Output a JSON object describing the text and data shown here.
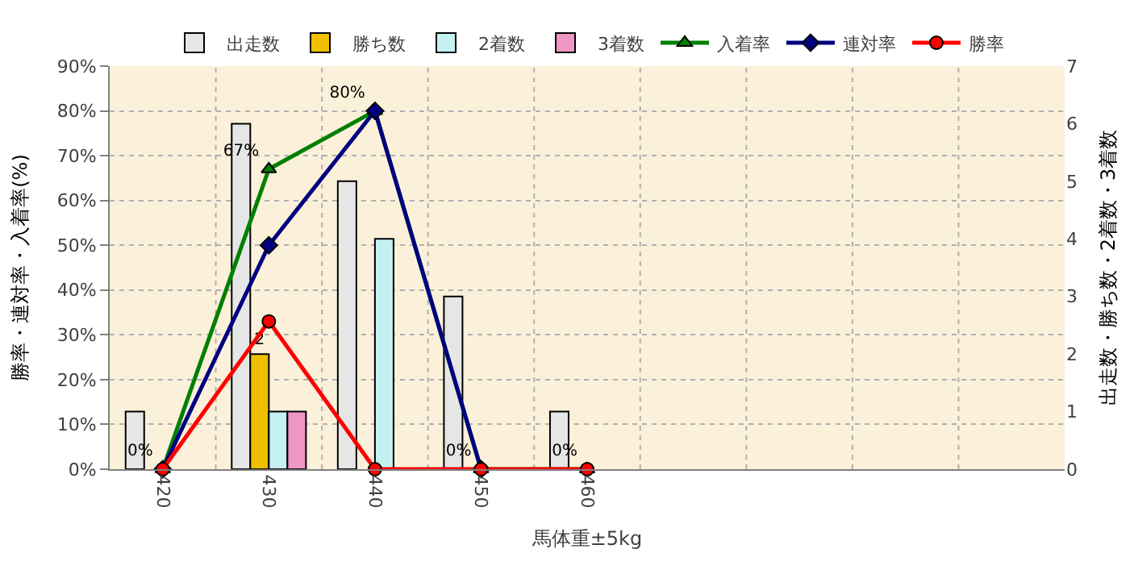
{
  "chart_data": {
    "type": "bar",
    "xlabel": "馬体重±5kg",
    "ylabel": "勝率・連対率・入着率(%)",
    "y2label": "出走数・勝ち数・2着数・3着数",
    "categories": [
      "420",
      "430",
      "440",
      "450",
      "460",
      null,
      null,
      null,
      null
    ],
    "series": [
      {
        "name": "出走数",
        "axis": "y2",
        "color": "#e6e6e6",
        "values": [
          1,
          6,
          5,
          3,
          1,
          null,
          null,
          null,
          null
        ]
      },
      {
        "name": "勝ち数",
        "axis": "y2",
        "color": "#f0c000",
        "values": [
          null,
          2,
          null,
          null,
          null,
          null,
          null,
          null,
          null
        ],
        "value_labels": [
          null,
          "2",
          null,
          null,
          null,
          null,
          null,
          null,
          null
        ]
      },
      {
        "name": "2着数",
        "axis": "y2",
        "color": "#c4f2f2",
        "values": [
          null,
          1,
          4,
          null,
          null,
          null,
          null,
          null,
          null
        ]
      },
      {
        "name": "3着数",
        "axis": "y2",
        "color": "#f096c4",
        "values": [
          null,
          1,
          null,
          null,
          null,
          null,
          null,
          null,
          null
        ]
      },
      {
        "name": "入着率",
        "type": "line",
        "axis": "y",
        "color": "#008000",
        "marker": "triangle",
        "values": [
          0,
          67,
          80,
          0,
          0,
          null,
          null,
          null,
          null
        ],
        "value_labels": [
          "0%",
          "67%",
          "80%",
          "0%",
          "0%",
          null,
          null,
          null,
          null
        ]
      },
      {
        "name": "連対率",
        "type": "line",
        "axis": "y",
        "color": "#000080",
        "marker": "diamond",
        "values": [
          0,
          50,
          80,
          0,
          null,
          null,
          null,
          null,
          null
        ]
      },
      {
        "name": "勝率",
        "type": "line",
        "axis": "y",
        "color": "#ff0000",
        "marker": "circle",
        "values": [
          0,
          33,
          0,
          0,
          0,
          null,
          null,
          null,
          null
        ]
      }
    ],
    "ylim": [
      0,
      90
    ],
    "yticks": [
      {
        "value": 0,
        "label": "0%"
      },
      {
        "value": 10,
        "label": "10%"
      },
      {
        "value": 20,
        "label": "20%"
      },
      {
        "value": 30,
        "label": "30%"
      },
      {
        "value": 40,
        "label": "40%"
      },
      {
        "value": 50,
        "label": "50%"
      },
      {
        "value": 60,
        "label": "60%"
      },
      {
        "value": 70,
        "label": "70%"
      },
      {
        "value": 80,
        "label": "80%"
      },
      {
        "value": 90,
        "label": "90%"
      }
    ],
    "y2lim": [
      0,
      7
    ],
    "y2ticks": [
      0,
      1,
      2,
      3,
      4,
      5,
      6,
      7
    ],
    "grid": true,
    "legend": "top",
    "line_style": "solid"
  }
}
